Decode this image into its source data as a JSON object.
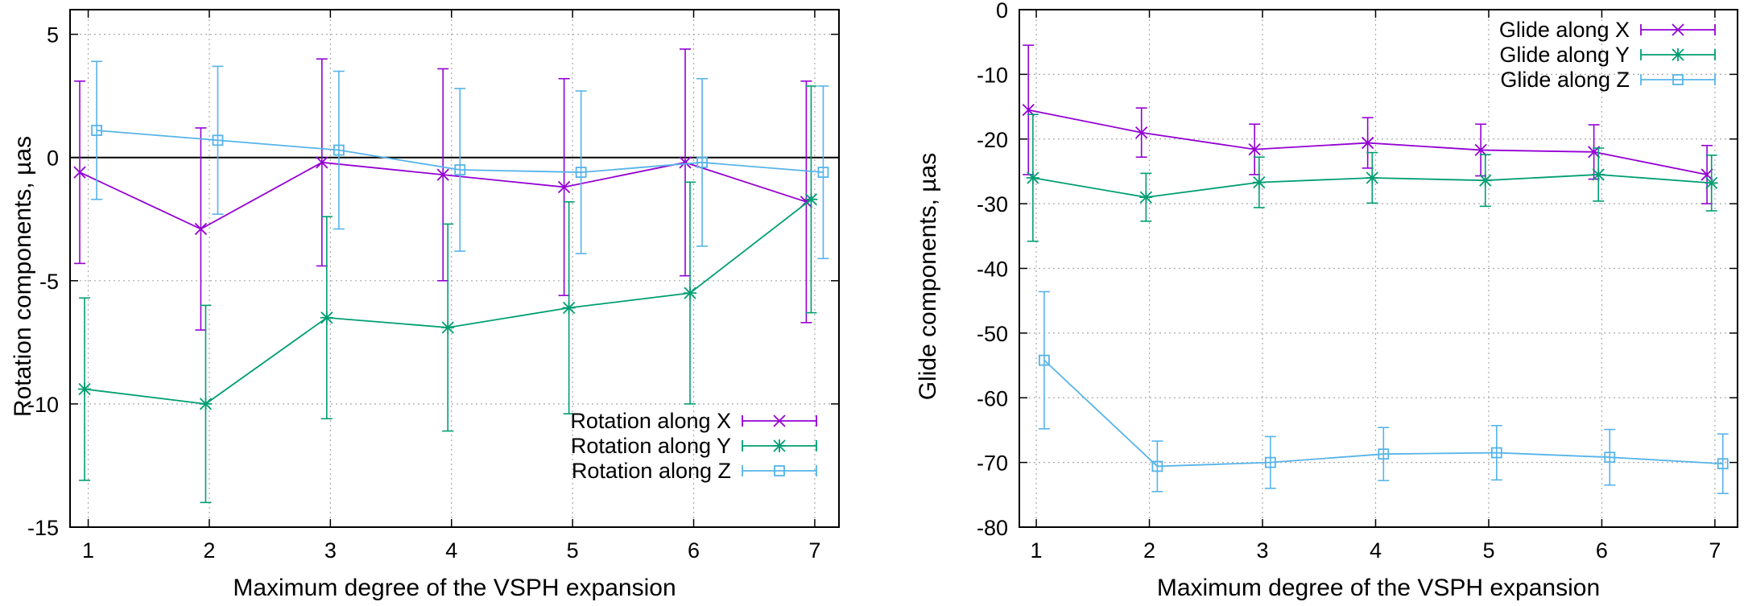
{
  "chart_data": [
    {
      "type": "line",
      "error_bars": true,
      "xlabel": "Maximum degree of the VSPH expansion",
      "ylabel": "Rotation components, µas",
      "xlim": [
        0.85,
        7.2
      ],
      "ylim": [
        -15,
        6
      ],
      "xticks": [
        1,
        2,
        3,
        4,
        5,
        6,
        7
      ],
      "yticks": [
        5,
        0,
        -5,
        -10,
        -15
      ],
      "grid": true,
      "zero_line": true,
      "legend_position": "bottom-right",
      "series": [
        {
          "name": "Rotation along X",
          "color": "#9400d3",
          "marker": "x",
          "x": [
            0.93,
            1.93,
            2.93,
            3.93,
            4.93,
            5.93,
            6.93
          ],
          "y": [
            -0.6,
            -2.9,
            -0.2,
            -0.7,
            -1.2,
            -0.2,
            -1.8
          ],
          "err": [
            3.7,
            4.1,
            4.2,
            4.3,
            4.4,
            4.6,
            4.9
          ]
        },
        {
          "name": "Rotation along Y",
          "color": "#009e73",
          "marker": "*",
          "x": [
            0.97,
            1.97,
            2.97,
            3.97,
            4.97,
            5.97,
            6.97
          ],
          "y": [
            -9.4,
            -10.0,
            -6.5,
            -6.9,
            -6.1,
            -5.5,
            -1.7
          ],
          "err": [
            3.7,
            4.0,
            4.1,
            4.2,
            4.3,
            4.5,
            4.6
          ]
        },
        {
          "name": "Rotation along Z",
          "color": "#56b4e9",
          "marker": "square",
          "x": [
            1.07,
            2.07,
            3.07,
            4.07,
            5.07,
            6.07,
            7.07
          ],
          "y": [
            1.1,
            0.7,
            0.3,
            -0.5,
            -0.6,
            -0.2,
            -0.6
          ],
          "err": [
            2.8,
            3.0,
            3.2,
            3.3,
            3.3,
            3.4,
            3.5
          ]
        }
      ]
    },
    {
      "type": "line",
      "error_bars": true,
      "xlabel": "Maximum degree of the VSPH expansion",
      "ylabel": "Glide components, µas",
      "xlim": [
        0.85,
        7.2
      ],
      "ylim": [
        -80,
        0
      ],
      "xticks": [
        1,
        2,
        3,
        4,
        5,
        6,
        7
      ],
      "yticks": [
        0,
        -10,
        -20,
        -30,
        -40,
        -50,
        -60,
        -70,
        -80
      ],
      "grid": true,
      "legend_position": "top-right",
      "series": [
        {
          "name": "Glide along X",
          "color": "#9400d3",
          "marker": "x",
          "x": [
            0.93,
            1.93,
            2.93,
            3.93,
            4.93,
            5.93,
            6.93
          ],
          "y": [
            -15.5,
            -19.0,
            -21.6,
            -20.6,
            -21.7,
            -22.0,
            -25.5
          ],
          "err": [
            10.0,
            3.8,
            3.9,
            3.9,
            4.0,
            4.2,
            4.5
          ]
        },
        {
          "name": "Glide along Y",
          "color": "#009e73",
          "marker": "*",
          "x": [
            0.97,
            1.97,
            2.97,
            3.97,
            4.97,
            5.97,
            6.97
          ],
          "y": [
            -26.0,
            -29.0,
            -26.7,
            -26.0,
            -26.4,
            -25.5,
            -26.8
          ],
          "err": [
            9.8,
            3.7,
            3.9,
            3.9,
            4.0,
            4.1,
            4.3
          ]
        },
        {
          "name": "Glide along Z",
          "color": "#56b4e9",
          "marker": "square",
          "x": [
            1.07,
            2.07,
            3.07,
            4.07,
            5.07,
            6.07,
            7.07
          ],
          "y": [
            -54.2,
            -70.6,
            -70.0,
            -68.7,
            -68.5,
            -69.2,
            -70.2
          ],
          "err": [
            10.6,
            3.9,
            4.0,
            4.1,
            4.2,
            4.3,
            4.6
          ]
        }
      ]
    }
  ]
}
